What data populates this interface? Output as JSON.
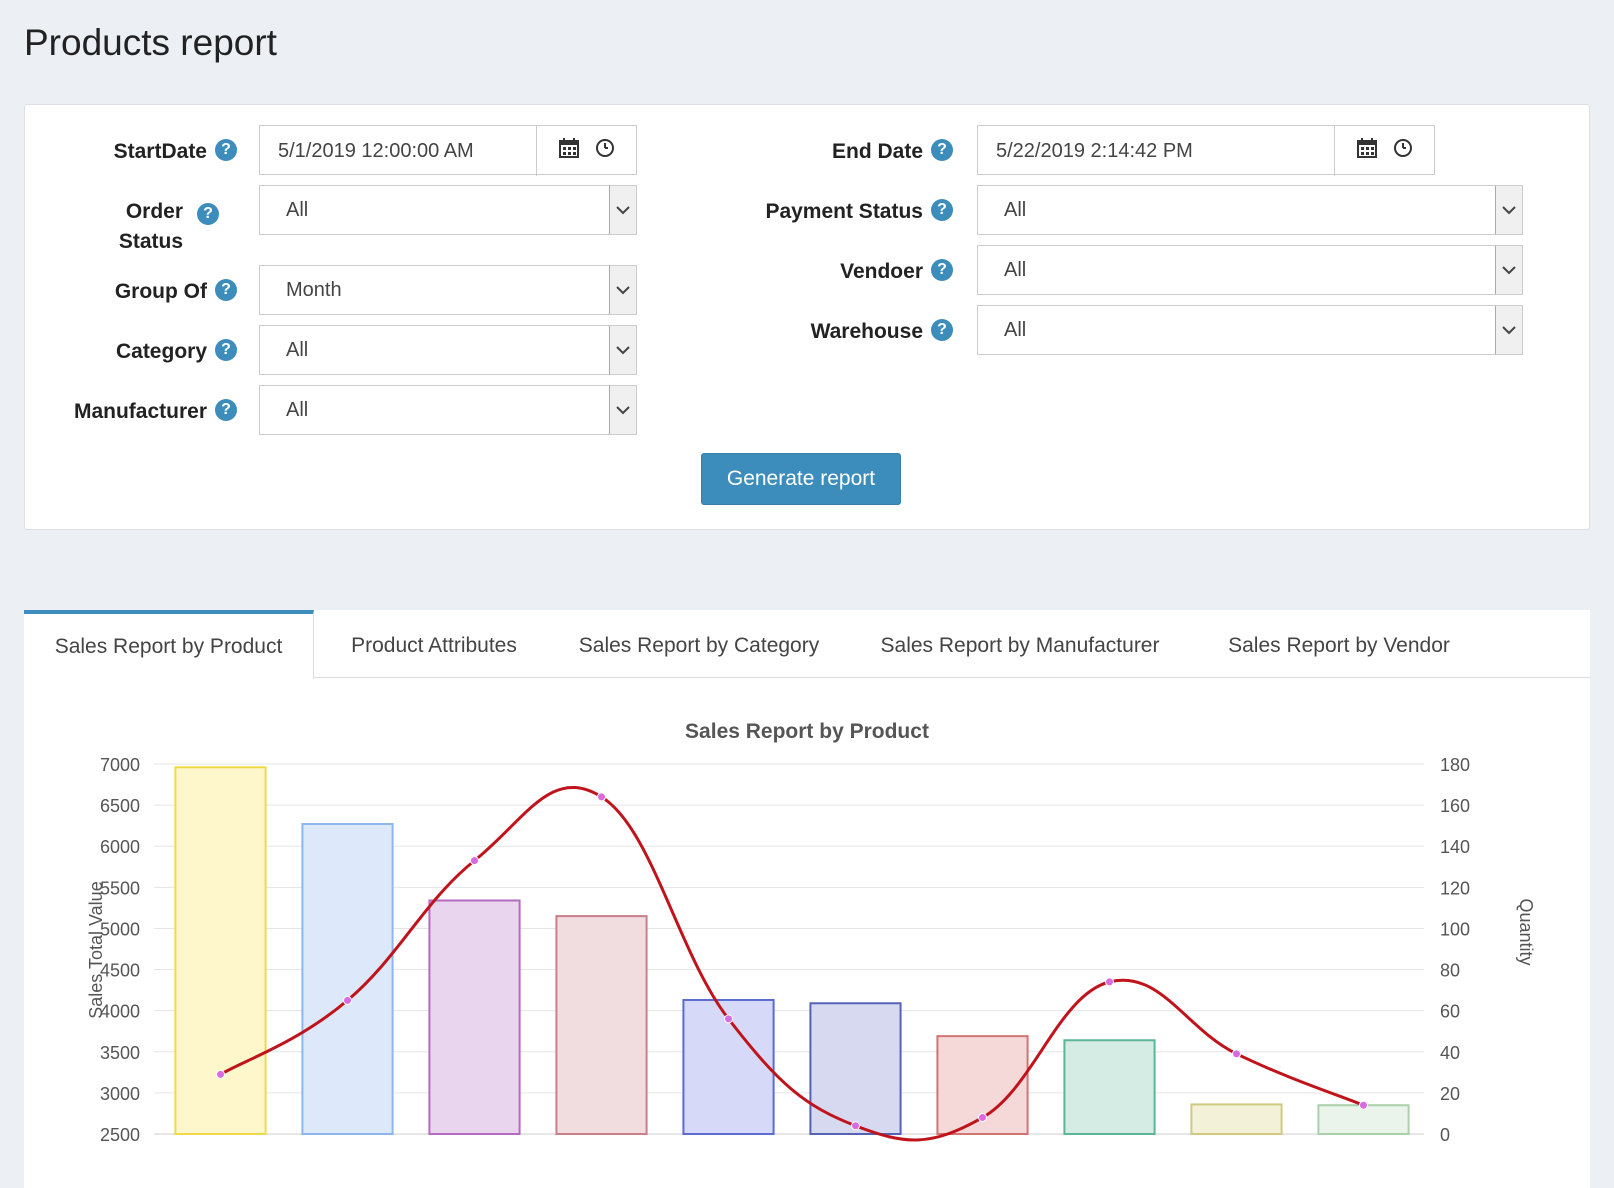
{
  "page": {
    "title": "Products report"
  },
  "filters": {
    "start_date": {
      "label": "StartDate",
      "value": "5/1/2019 12:00:00 AM"
    },
    "end_date": {
      "label": "End Date",
      "value": "5/22/2019 2:14:42 PM"
    },
    "order_status": {
      "label_line1": "Order",
      "label_line2": "Status",
      "value": "All"
    },
    "payment_status": {
      "label": "Payment Status",
      "value": "All"
    },
    "group_of": {
      "label": "Group Of",
      "value": "Month"
    },
    "vendor": {
      "label": "Vendoer",
      "value": "All"
    },
    "category": {
      "label": "Category",
      "value": "All"
    },
    "warehouse": {
      "label": "Warehouse",
      "value": "All"
    },
    "manufacturer": {
      "label": "Manufacturer",
      "value": "All"
    },
    "help_glyph": "?",
    "generate_label": "Generate report"
  },
  "tabs": [
    {
      "label": "Sales Report by Product",
      "active": true
    },
    {
      "label": "Product Attributes",
      "active": false
    },
    {
      "label": "Sales Report by Category",
      "active": false
    },
    {
      "label": "Sales Report by Manufacturer",
      "active": false
    },
    {
      "label": "Sales Report by Vendor",
      "active": false
    }
  ],
  "colors": {
    "accent": "#3c8dbc",
    "line": "#c0141c",
    "point": "#d96ae0"
  },
  "chart_data": {
    "type": "bar",
    "title": "Sales Report by Product",
    "ylabel": "Sales Total Value",
    "y2label": "Quantity",
    "ylim": [
      2500,
      7000
    ],
    "y2lim": [
      0,
      180
    ],
    "yticks": [
      "7000",
      "6500",
      "6000",
      "5500",
      "5000",
      "4500",
      "4000",
      "3500",
      "3000",
      "2500"
    ],
    "y2ticks": [
      "180",
      "160",
      "140",
      "120",
      "100",
      "80",
      "60",
      "40",
      "20",
      "0"
    ],
    "series": [
      {
        "type": "bar",
        "values": [
          6960,
          6270,
          5340,
          5150,
          4130,
          4090,
          3690,
          3640,
          2860,
          2850
        ],
        "fills": [
          "#fff7cc",
          "#dde9fb",
          "#ead5ee",
          "#f1dcdf",
          "#d6d9f7",
          "#d6d9f0",
          "#f5d9d9",
          "#d5ece4",
          "#f3f2d8",
          "#eaf4ea"
        ],
        "strokes": [
          "#f1d84a",
          "#8eb6ea",
          "#b56cc0",
          "#c97f8a",
          "#5b6bd0",
          "#5562b8",
          "#d07474",
          "#5db597",
          "#cfca7e",
          "#a9d2aa"
        ]
      },
      {
        "type": "line",
        "axis": "right",
        "values": [
          29,
          65,
          133,
          164,
          56,
          4,
          8,
          74,
          39,
          14
        ]
      }
    ]
  }
}
